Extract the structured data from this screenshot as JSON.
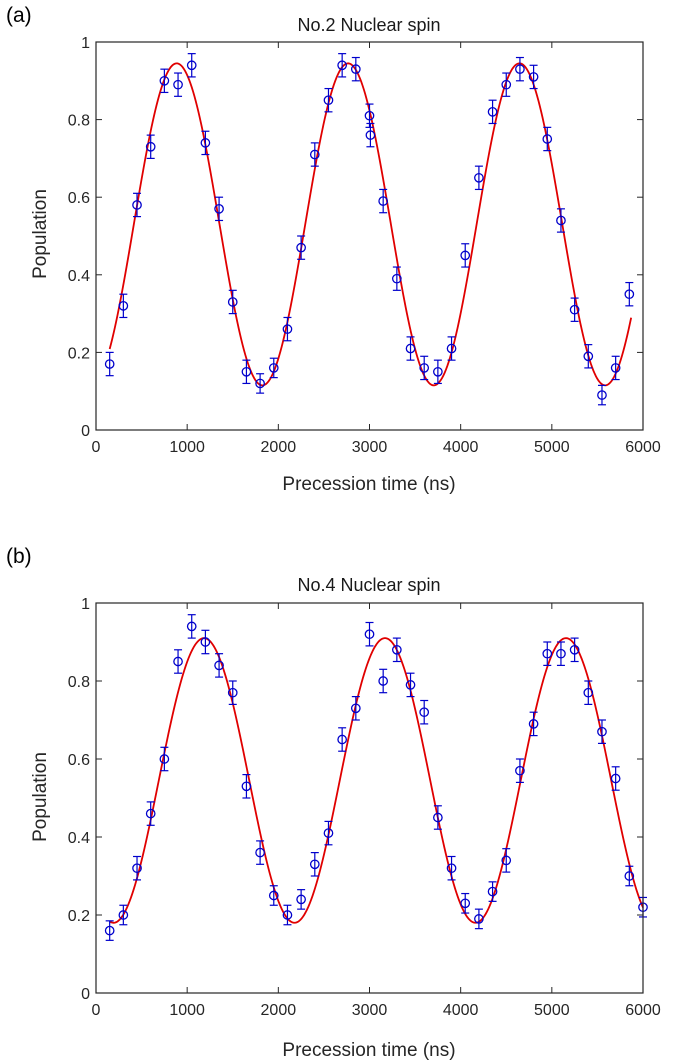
{
  "chart_data": [
    {
      "type": "scatter",
      "panel_label": "(a)",
      "title": "No.2 Nuclear spin",
      "xlabel": "Precession time (ns)",
      "ylabel": "Population",
      "xlim": [
        0,
        6000
      ],
      "ylim": [
        0,
        1
      ],
      "xticks": [
        0,
        1000,
        2000,
        3000,
        4000,
        5000,
        6000
      ],
      "yticks": [
        0,
        0.2,
        0.4,
        0.6,
        0.8,
        1
      ],
      "xtick_labels": [
        "0",
        "1000",
        "2000",
        "3000",
        "4000",
        "5000",
        "6000"
      ],
      "ytick_labels": [
        "0",
        "0.2",
        "0.4",
        "0.6",
        "0.8",
        "1"
      ],
      "grid": false,
      "colors": {
        "data": "#0000cc",
        "fit": "#e00000"
      },
      "data": {
        "x": [
          150,
          300,
          450,
          600,
          750,
          900,
          1050,
          1200,
          1350,
          1500,
          1650,
          1800,
          1950,
          2100,
          2250,
          2400,
          2550,
          2700,
          2850,
          3000,
          3010,
          3150,
          3300,
          3450,
          3600,
          3750,
          3900,
          4050,
          4200,
          4350,
          4500,
          4650,
          4800,
          4950,
          5100,
          5250,
          5400,
          5550,
          5700,
          5850
        ],
        "y": [
          0.17,
          0.32,
          0.58,
          0.73,
          0.9,
          0.89,
          0.94,
          0.74,
          0.57,
          0.33,
          0.15,
          0.12,
          0.16,
          0.26,
          0.47,
          0.71,
          0.85,
          0.94,
          0.93,
          0.81,
          0.76,
          0.59,
          0.39,
          0.21,
          0.16,
          0.15,
          0.21,
          0.45,
          0.65,
          0.82,
          0.89,
          0.93,
          0.91,
          0.75,
          0.54,
          0.31,
          0.19,
          0.09,
          0.16,
          0.35
        ],
        "err": [
          0.03,
          0.03,
          0.03,
          0.03,
          0.03,
          0.03,
          0.03,
          0.03,
          0.03,
          0.03,
          0.03,
          0.025,
          0.025,
          0.03,
          0.03,
          0.03,
          0.03,
          0.03,
          0.03,
          0.03,
          0.03,
          0.03,
          0.03,
          0.03,
          0.03,
          0.03,
          0.03,
          0.03,
          0.03,
          0.03,
          0.03,
          0.03,
          0.03,
          0.03,
          0.03,
          0.03,
          0.03,
          0.025,
          0.03,
          0.03
        ]
      },
      "fit": {
        "model": "cosine",
        "offset": 0.53,
        "amplitude": 0.415,
        "period_ns": 1880,
        "peak_ns": 885
      }
    },
    {
      "type": "scatter",
      "panel_label": "(b)",
      "title": "No.4 Nuclear spin",
      "xlabel": "Precession time (ns)",
      "ylabel": "Population",
      "xlim": [
        0,
        6000
      ],
      "ylim": [
        0,
        1
      ],
      "xticks": [
        0,
        1000,
        2000,
        3000,
        4000,
        5000,
        6000
      ],
      "yticks": [
        0,
        0.2,
        0.4,
        0.6,
        0.8,
        1
      ],
      "xtick_labels": [
        "0",
        "1000",
        "2000",
        "3000",
        "4000",
        "5000",
        "6000"
      ],
      "ytick_labels": [
        "0",
        "0.2",
        "0.4",
        "0.6",
        "0.8",
        "1"
      ],
      "grid": false,
      "colors": {
        "data": "#0000cc",
        "fit": "#e00000"
      },
      "data": {
        "x": [
          150,
          300,
          450,
          600,
          750,
          900,
          1050,
          1200,
          1350,
          1500,
          1650,
          1800,
          1950,
          2100,
          2250,
          2400,
          2550,
          2700,
          2850,
          3000,
          3150,
          3300,
          3450,
          3600,
          3750,
          3900,
          4050,
          4200,
          4350,
          4500,
          4650,
          4800,
          4950,
          5100,
          5250,
          5400,
          5550,
          5700,
          5850,
          6000
        ],
        "y": [
          0.16,
          0.2,
          0.32,
          0.46,
          0.6,
          0.85,
          0.94,
          0.9,
          0.84,
          0.77,
          0.53,
          0.36,
          0.25,
          0.2,
          0.24,
          0.33,
          0.41,
          0.65,
          0.73,
          0.92,
          0.8,
          0.88,
          0.79,
          0.72,
          0.45,
          0.32,
          0.23,
          0.19,
          0.26,
          0.34,
          0.57,
          0.69,
          0.87,
          0.87,
          0.88,
          0.77,
          0.67,
          0.55,
          0.3,
          0.22
        ],
        "err": [
          0.025,
          0.025,
          0.03,
          0.03,
          0.03,
          0.03,
          0.03,
          0.03,
          0.03,
          0.03,
          0.03,
          0.03,
          0.025,
          0.025,
          0.025,
          0.03,
          0.03,
          0.03,
          0.03,
          0.03,
          0.03,
          0.03,
          0.03,
          0.03,
          0.03,
          0.03,
          0.025,
          0.025,
          0.025,
          0.03,
          0.03,
          0.03,
          0.03,
          0.03,
          0.03,
          0.03,
          0.03,
          0.03,
          0.025,
          0.025
        ]
      },
      "fit": {
        "model": "cosine",
        "offset": 0.545,
        "amplitude": 0.365,
        "period_ns": 1985,
        "peak_ns": 1185
      }
    }
  ]
}
